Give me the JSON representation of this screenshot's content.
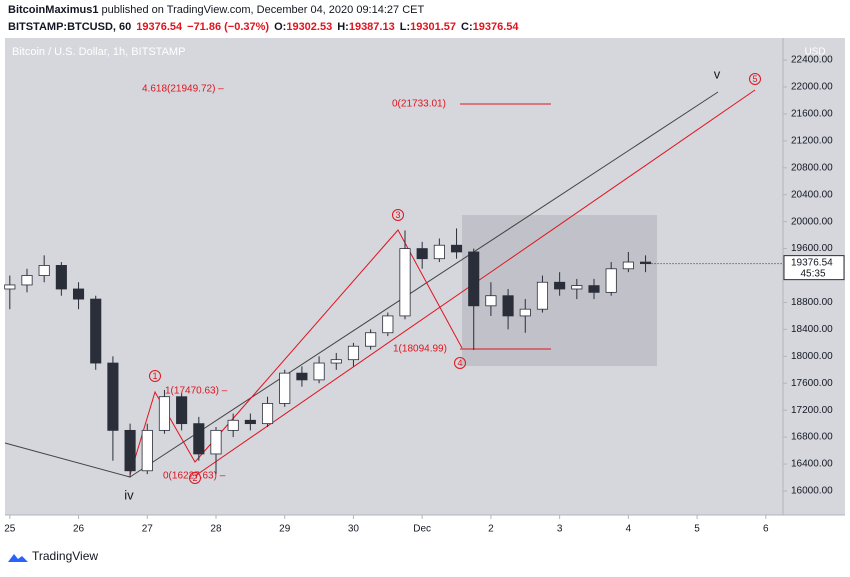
{
  "header": {
    "line1_user": "BitcoinMaximus1",
    "line1_rest": "published on TradingView.com, December 04, 2020 09:14:27 CET",
    "symbol": "BITSTAMP:BTCUSD, 60",
    "last": "19376.54",
    "change": "−71.86 (−0.37%)",
    "ohlc": [
      {
        "label": "O:",
        "value": "19302.53"
      },
      {
        "label": "H:",
        "value": "19387.13"
      },
      {
        "label": "L:",
        "value": "19301.57"
      },
      {
        "label": "C:",
        "value": "19376.54"
      }
    ]
  },
  "footer": "TradingView",
  "chart_data": {
    "type": "candlestick",
    "title": "Bitcoin / U.S. Dollar, 1h, BITSTAMP",
    "y_axis_label": "USD",
    "price_tag": "19376.54",
    "countdown": "45:35",
    "x": [
      0,
      0.25,
      0.5,
      0.75,
      1,
      1.25,
      1.5,
      1.75,
      2,
      2.25,
      2.5,
      2.75,
      3,
      3.25,
      3.5,
      3.75,
      4,
      4.25,
      4.5,
      4.75,
      5,
      5.25,
      5.5,
      5.75,
      6,
      6.25,
      6.5,
      6.75,
      7,
      7.25,
      7.5,
      7.75,
      8,
      8.25,
      8.5,
      8.75,
      9,
      9.25
    ],
    "open": [
      19000,
      19060,
      19200,
      19350,
      19000,
      18850,
      17900,
      16900,
      16300,
      16900,
      17400,
      17000,
      16550,
      16900,
      17050,
      17000,
      17300,
      17750,
      17650,
      17900,
      17950,
      18150,
      18350,
      18600,
      19600,
      19450,
      19650,
      19550,
      18750,
      18900,
      18600,
      18700,
      19100,
      19000,
      19050,
      18950,
      19300,
      19400
    ],
    "high": [
      19200,
      19300,
      19500,
      19400,
      19100,
      18900,
      18000,
      17000,
      17000,
      17500,
      17450,
      17100,
      16950,
      17150,
      17150,
      17400,
      17800,
      17850,
      18000,
      18050,
      18200,
      18400,
      18650,
      19870,
      19700,
      19750,
      19900,
      19600,
      19100,
      19000,
      18850,
      19200,
      19250,
      19150,
      19150,
      19400,
      19550,
      19500
    ],
    "low": [
      18700,
      18950,
      19100,
      18900,
      18700,
      17800,
      16450,
      16200,
      16250,
      16850,
      16900,
      16450,
      16250,
      16800,
      16900,
      16950,
      17250,
      17550,
      17600,
      17800,
      17850,
      18100,
      18300,
      18550,
      19300,
      19400,
      19450,
      18095,
      18600,
      18400,
      18350,
      18650,
      18900,
      18850,
      18850,
      18900,
      19250,
      19250
    ],
    "close": [
      19060,
      19200,
      19350,
      19000,
      18850,
      17900,
      16900,
      16300,
      16900,
      17400,
      17000,
      16550,
      16900,
      17050,
      17000,
      17300,
      17750,
      17650,
      17900,
      17950,
      18150,
      18350,
      18600,
      19600,
      19450,
      19650,
      19550,
      18750,
      18900,
      18600,
      18700,
      19100,
      19000,
      19050,
      18950,
      19300,
      19400,
      19376.54
    ],
    "up_color": "#ffffff",
    "down_color": "#2a2e39",
    "xlim": [
      -0.07,
      11.25
    ],
    "ylim": [
      15643,
      22728
    ],
    "xticks": [
      {
        "value": 0,
        "label": "25"
      },
      {
        "value": 1,
        "label": "26"
      },
      {
        "value": 2,
        "label": "27"
      },
      {
        "value": 3,
        "label": "28"
      },
      {
        "value": 4,
        "label": "29"
      },
      {
        "value": 5,
        "label": "30"
      },
      {
        "value": 6,
        "label": "Dec"
      },
      {
        "value": 7,
        "label": "2"
      },
      {
        "value": 8,
        "label": "3"
      },
      {
        "value": 9,
        "label": "4"
      },
      {
        "value": 10,
        "label": "5"
      },
      {
        "value": 11,
        "label": "6"
      }
    ],
    "yticks": [
      {
        "value": 16000,
        "label": "16000.00"
      },
      {
        "value": 16400,
        "label": "16400.00"
      },
      {
        "value": 16800,
        "label": "16800.00"
      },
      {
        "value": 17200,
        "label": "17200.00"
      },
      {
        "value": 17600,
        "label": "17600.00"
      },
      {
        "value": 18000,
        "label": "18000.00"
      },
      {
        "value": 18400,
        "label": "18400.00"
      },
      {
        "value": 18800,
        "label": "18800.00"
      },
      {
        "value": 19200,
        "label": "19200.00"
      },
      {
        "value": 19600,
        "label": "19600.00"
      },
      {
        "value": 20000,
        "label": "20000.00"
      },
      {
        "value": 20400,
        "label": "20400.00"
      },
      {
        "value": 20800,
        "label": "20800.00"
      },
      {
        "value": 21200,
        "label": "21200.00"
      },
      {
        "value": 21600,
        "label": "21600.00"
      },
      {
        "value": 22000,
        "label": "22000.00"
      },
      {
        "value": 22400,
        "label": "22400.00"
      }
    ],
    "fib_labels": [
      "4.618(21949.72) –",
      "0(21733.01)",
      "1(17470.63) –",
      "0(16227.63) –",
      "1(18094.99)"
    ],
    "wave_labels": [
      "1",
      "2",
      "3",
      "4",
      "5",
      "iv",
      "v"
    ]
  }
}
